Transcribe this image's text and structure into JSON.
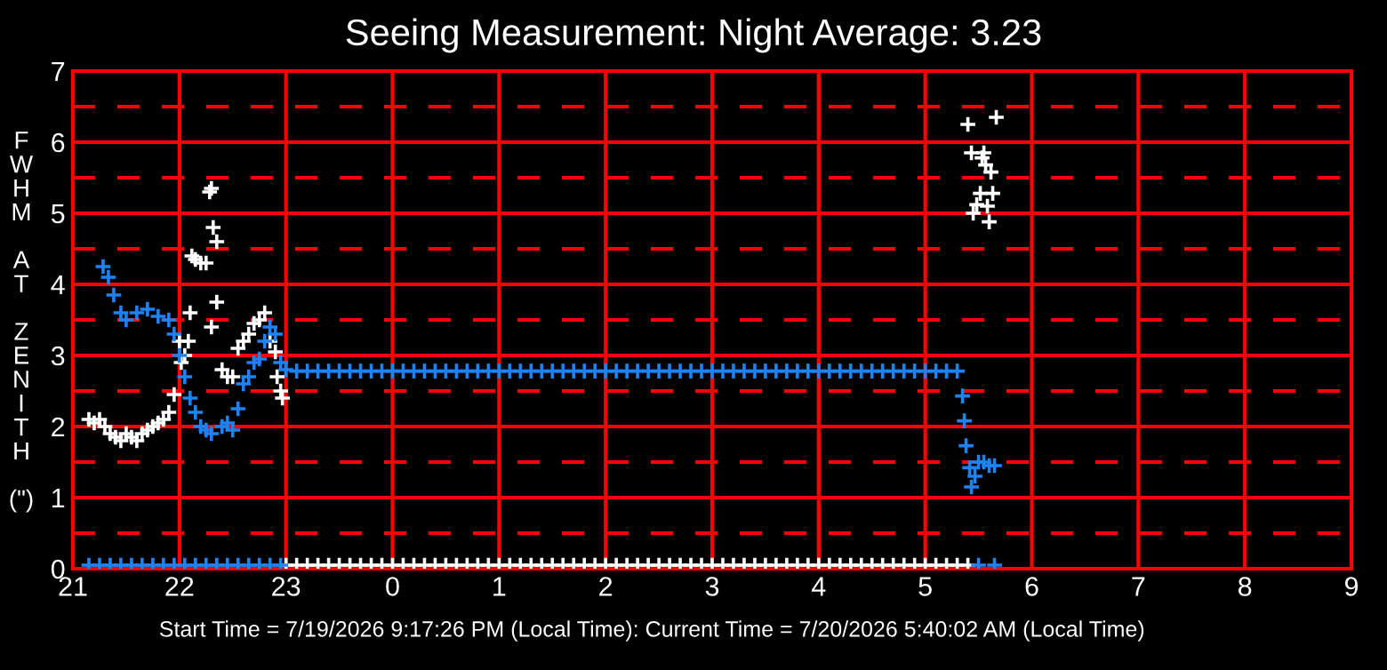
{
  "chart_data": {
    "type": "scatter",
    "title": "Seeing Measurement: Night Average: 3.23",
    "ylabel": "FWHM AT ZENITH (\")",
    "annotations": [
      "Start Time = 7/19/2026 9:17:26 PM (Local Time): Current Time = 7/20/2026 5:40:02 AM (Local Time)"
    ],
    "xlim": [
      "2026-07-19T21:00",
      "2026-07-20T09:00"
    ],
    "xticks": [
      {
        "value": "2026-07-19T21:00",
        "label": "21"
      },
      {
        "value": "2026-07-19T22:00",
        "label": "22"
      },
      {
        "value": "2026-07-19T23:00",
        "label": "23"
      },
      {
        "value": "2026-07-20T00:00",
        "label": "0"
      },
      {
        "value": "2026-07-20T01:00",
        "label": "1"
      },
      {
        "value": "2026-07-20T02:00",
        "label": "2"
      },
      {
        "value": "2026-07-20T03:00",
        "label": "3"
      },
      {
        "value": "2026-07-20T04:00",
        "label": "4"
      },
      {
        "value": "2026-07-20T05:00",
        "label": "5"
      },
      {
        "value": "2026-07-20T06:00",
        "label": "6"
      },
      {
        "value": "2026-07-20T07:00",
        "label": "7"
      },
      {
        "value": "2026-07-20T08:00",
        "label": "8"
      },
      {
        "value": "2026-07-20T09:00",
        "label": "9"
      }
    ],
    "ylim": [
      0,
      7
    ],
    "yticks": [
      0,
      1,
      2,
      3,
      4,
      5,
      6,
      7
    ],
    "grid": true,
    "marker": "cross",
    "ref_lines": [
      {
        "axis": "y",
        "value": 0.5,
        "color": "#ff0000",
        "line_style": "dashed"
      },
      {
        "axis": "y",
        "value": 1.5,
        "color": "#ff0000",
        "line_style": "dashed"
      },
      {
        "axis": "y",
        "value": 2.5,
        "color": "#ff0000",
        "line_style": "dashed"
      },
      {
        "axis": "y",
        "value": 3.5,
        "color": "#ff0000",
        "line_style": "dashed"
      },
      {
        "axis": "y",
        "value": 4.5,
        "color": "#ff0000",
        "line_style": "dashed"
      },
      {
        "axis": "y",
        "value": 5.5,
        "color": "#ff0000",
        "line_style": "dashed"
      },
      {
        "axis": "y",
        "value": 6.5,
        "color": "#ff0000",
        "line_style": "dashed"
      }
    ],
    "series": [
      {
        "color": "#ffffff",
        "x": [
          "2026-07-19T21:09",
          "2026-07-19T21:12",
          "2026-07-19T21:15",
          "2026-07-19T21:18",
          "2026-07-19T21:21",
          "2026-07-19T21:24",
          "2026-07-19T21:27",
          "2026-07-19T21:30",
          "2026-07-19T21:33",
          "2026-07-19T21:36",
          "2026-07-19T21:39",
          "2026-07-19T21:42",
          "2026-07-19T21:45",
          "2026-07-19T21:48",
          "2026-07-19T21:51",
          "2026-07-19T21:54",
          "2026-07-19T21:57",
          "2026-07-19T22:00",
          "2026-07-19T22:01",
          "2026-07-19T22:03",
          "2026-07-19T22:05",
          "2026-07-19T22:06",
          "2026-07-19T22:07",
          "2026-07-19T22:09",
          "2026-07-19T22:12",
          "2026-07-19T22:15",
          "2026-07-19T22:17",
          "2026-07-19T22:18",
          "2026-07-19T22:19",
          "2026-07-19T22:21",
          "2026-07-19T22:18",
          "2026-07-19T22:21",
          "2026-07-19T22:24",
          "2026-07-19T22:27",
          "2026-07-19T22:30",
          "2026-07-19T22:33",
          "2026-07-19T22:36",
          "2026-07-19T22:39",
          "2026-07-19T22:42",
          "2026-07-19T22:45",
          "2026-07-19T22:48",
          "2026-07-19T22:51",
          "2026-07-19T22:54",
          "2026-07-19T22:55",
          "2026-07-19T22:57",
          "2026-07-19T22:58",
          "2026-07-20T05:24",
          "2026-07-20T05:26",
          "2026-07-20T05:27",
          "2026-07-20T05:29",
          "2026-07-20T05:31",
          "2026-07-20T05:32",
          "2026-07-20T05:33",
          "2026-07-20T05:34",
          "2026-07-20T05:35",
          "2026-07-20T05:36",
          "2026-07-20T05:37",
          "2026-07-20T05:38",
          "2026-07-20T05:40"
        ],
        "values": [
          2.1,
          2.05,
          2.1,
          2.0,
          1.9,
          1.85,
          1.8,
          1.9,
          1.85,
          1.8,
          1.9,
          1.95,
          2.0,
          2.05,
          2.1,
          2.2,
          2.45,
          3.2,
          2.9,
          3.0,
          3.2,
          3.6,
          4.4,
          4.35,
          4.3,
          4.3,
          5.3,
          5.35,
          4.8,
          4.6,
          3.4,
          3.75,
          2.8,
          2.7,
          2.7,
          3.1,
          3.2,
          3.3,
          3.45,
          3.5,
          3.6,
          3.2,
          3.05,
          2.7,
          2.5,
          2.4,
          6.25,
          5.85,
          5.0,
          5.12,
          5.28,
          5.78,
          5.85,
          5.68,
          5.1,
          4.88,
          5.58,
          5.28,
          6.35
        ]
      },
      {
        "color": "#ffffff",
        "x": [
          "2026-07-19T23:00",
          "2026-07-19T23:06",
          "2026-07-19T23:12",
          "2026-07-19T23:18",
          "2026-07-19T23:24",
          "2026-07-19T23:30",
          "2026-07-19T23:36",
          "2026-07-19T23:42",
          "2026-07-19T23:48",
          "2026-07-19T23:54",
          "2026-07-20T00:00",
          "2026-07-20T00:06",
          "2026-07-20T00:12",
          "2026-07-20T00:18",
          "2026-07-20T00:24",
          "2026-07-20T00:30",
          "2026-07-20T00:36",
          "2026-07-20T00:42",
          "2026-07-20T00:48",
          "2026-07-20T00:54",
          "2026-07-20T01:00",
          "2026-07-20T01:06",
          "2026-07-20T01:12",
          "2026-07-20T01:18",
          "2026-07-20T01:24",
          "2026-07-20T01:30",
          "2026-07-20T01:36",
          "2026-07-20T01:42",
          "2026-07-20T01:48",
          "2026-07-20T01:54",
          "2026-07-20T02:00",
          "2026-07-20T02:06",
          "2026-07-20T02:12",
          "2026-07-20T02:18",
          "2026-07-20T02:24",
          "2026-07-20T02:30",
          "2026-07-20T02:36",
          "2026-07-20T02:42",
          "2026-07-20T02:48",
          "2026-07-20T02:54",
          "2026-07-20T03:00",
          "2026-07-20T03:06",
          "2026-07-20T03:12",
          "2026-07-20T03:18",
          "2026-07-20T03:24",
          "2026-07-20T03:30",
          "2026-07-20T03:36",
          "2026-07-20T03:42",
          "2026-07-20T03:48",
          "2026-07-20T03:54",
          "2026-07-20T04:00",
          "2026-07-20T04:06",
          "2026-07-20T04:12",
          "2026-07-20T04:18",
          "2026-07-20T04:24",
          "2026-07-20T04:30",
          "2026-07-20T04:36",
          "2026-07-20T04:42",
          "2026-07-20T04:48",
          "2026-07-20T04:54",
          "2026-07-20T05:00",
          "2026-07-20T05:06",
          "2026-07-20T05:12",
          "2026-07-20T05:18",
          "2026-07-20T05:24"
        ],
        "values": [
          0.05,
          0.05,
          0.05,
          0.05,
          0.05,
          0.05,
          0.05,
          0.05,
          0.05,
          0.05,
          0.05,
          0.05,
          0.05,
          0.05,
          0.05,
          0.05,
          0.05,
          0.05,
          0.05,
          0.05,
          0.05,
          0.05,
          0.05,
          0.05,
          0.05,
          0.05,
          0.05,
          0.05,
          0.05,
          0.05,
          0.05,
          0.05,
          0.05,
          0.05,
          0.05,
          0.05,
          0.05,
          0.05,
          0.05,
          0.05,
          0.05,
          0.05,
          0.05,
          0.05,
          0.05,
          0.05,
          0.05,
          0.05,
          0.05,
          0.05,
          0.05,
          0.05,
          0.05,
          0.05,
          0.05,
          0.05,
          0.05,
          0.05,
          0.05,
          0.05,
          0.05,
          0.05,
          0.05,
          0.05,
          0.05
        ]
      },
      {
        "color": "#1e82f0",
        "x": [
          "2026-07-19T21:17",
          "2026-07-19T21:20",
          "2026-07-19T21:23",
          "2026-07-19T21:27",
          "2026-07-19T21:30",
          "2026-07-19T21:36",
          "2026-07-19T21:42",
          "2026-07-19T21:48",
          "2026-07-19T21:54",
          "2026-07-19T21:57",
          "2026-07-19T22:00",
          "2026-07-19T22:03",
          "2026-07-19T22:06",
          "2026-07-19T22:09",
          "2026-07-19T22:12",
          "2026-07-19T22:15",
          "2026-07-19T22:18",
          "2026-07-19T22:24",
          "2026-07-19T22:27",
          "2026-07-19T22:30",
          "2026-07-19T22:33",
          "2026-07-19T22:36",
          "2026-07-19T22:39",
          "2026-07-19T22:42",
          "2026-07-19T22:45",
          "2026-07-19T22:48",
          "2026-07-19T22:51",
          "2026-07-19T22:54",
          "2026-07-19T22:57",
          "2026-07-19T23:00",
          "2026-07-19T23:06",
          "2026-07-19T23:12",
          "2026-07-19T23:18",
          "2026-07-19T23:24",
          "2026-07-19T23:30",
          "2026-07-19T23:36",
          "2026-07-19T23:42",
          "2026-07-19T23:48",
          "2026-07-19T23:54",
          "2026-07-20T00:00",
          "2026-07-20T00:06",
          "2026-07-20T00:12",
          "2026-07-20T00:18",
          "2026-07-20T00:24",
          "2026-07-20T00:30",
          "2026-07-20T00:36",
          "2026-07-20T00:42",
          "2026-07-20T00:48",
          "2026-07-20T00:54",
          "2026-07-20T01:00",
          "2026-07-20T01:06",
          "2026-07-20T01:12",
          "2026-07-20T01:18",
          "2026-07-20T01:24",
          "2026-07-20T01:30",
          "2026-07-20T01:36",
          "2026-07-20T01:42",
          "2026-07-20T01:48",
          "2026-07-20T01:54",
          "2026-07-20T02:00",
          "2026-07-20T02:06",
          "2026-07-20T02:12",
          "2026-07-20T02:18",
          "2026-07-20T02:24",
          "2026-07-20T02:30",
          "2026-07-20T02:36",
          "2026-07-20T02:42",
          "2026-07-20T02:48",
          "2026-07-20T02:54",
          "2026-07-20T03:00",
          "2026-07-20T03:06",
          "2026-07-20T03:12",
          "2026-07-20T03:18",
          "2026-07-20T03:24",
          "2026-07-20T03:30",
          "2026-07-20T03:36",
          "2026-07-20T03:42",
          "2026-07-20T03:48",
          "2026-07-20T03:54",
          "2026-07-20T04:00",
          "2026-07-20T04:06",
          "2026-07-20T04:12",
          "2026-07-20T04:18",
          "2026-07-20T04:24",
          "2026-07-20T04:30",
          "2026-07-20T04:36",
          "2026-07-20T04:42",
          "2026-07-20T04:48",
          "2026-07-20T04:54",
          "2026-07-20T05:00",
          "2026-07-20T05:06",
          "2026-07-20T05:12",
          "2026-07-20T05:18",
          "2026-07-20T05:21",
          "2026-07-20T05:22",
          "2026-07-20T05:23",
          "2026-07-20T05:25",
          "2026-07-20T05:26",
          "2026-07-20T05:28",
          "2026-07-20T05:30",
          "2026-07-20T05:33",
          "2026-07-20T05:36",
          "2026-07-20T05:39"
        ],
        "values": [
          4.25,
          4.1,
          3.85,
          3.6,
          3.5,
          3.6,
          3.65,
          3.55,
          3.5,
          3.3,
          3.0,
          2.7,
          2.4,
          2.2,
          2.0,
          1.95,
          1.9,
          2.0,
          2.05,
          1.95,
          2.25,
          2.6,
          2.7,
          2.9,
          2.95,
          3.2,
          3.4,
          3.3,
          2.9,
          2.8,
          2.78,
          2.78,
          2.78,
          2.78,
          2.78,
          2.78,
          2.78,
          2.78,
          2.78,
          2.78,
          2.78,
          2.78,
          2.78,
          2.78,
          2.78,
          2.78,
          2.78,
          2.78,
          2.78,
          2.78,
          2.78,
          2.78,
          2.78,
          2.78,
          2.78,
          2.78,
          2.78,
          2.78,
          2.78,
          2.78,
          2.78,
          2.78,
          2.78,
          2.78,
          2.78,
          2.78,
          2.78,
          2.78,
          2.78,
          2.78,
          2.78,
          2.78,
          2.78,
          2.78,
          2.78,
          2.78,
          2.78,
          2.78,
          2.78,
          2.78,
          2.78,
          2.78,
          2.78,
          2.78,
          2.78,
          2.78,
          2.78,
          2.78,
          2.78,
          2.78,
          2.78,
          2.78,
          2.78,
          2.43,
          2.08,
          1.73,
          1.42,
          1.15,
          1.3,
          1.5,
          1.5,
          1.45,
          1.45
        ]
      },
      {
        "color": "#1e82f0",
        "x": [
          "2026-07-19T21:09",
          "2026-07-19T21:15",
          "2026-07-19T21:21",
          "2026-07-19T21:27",
          "2026-07-19T21:33",
          "2026-07-19T21:39",
          "2026-07-19T21:45",
          "2026-07-19T21:51",
          "2026-07-19T21:57",
          "2026-07-19T22:03",
          "2026-07-19T22:09",
          "2026-07-19T22:15",
          "2026-07-19T22:21",
          "2026-07-19T22:27",
          "2026-07-19T22:33",
          "2026-07-19T22:39",
          "2026-07-19T22:45",
          "2026-07-19T22:51",
          "2026-07-19T22:57",
          "2026-07-20T05:30",
          "2026-07-20T05:39"
        ],
        "values": [
          0.05,
          0.05,
          0.05,
          0.05,
          0.05,
          0.05,
          0.05,
          0.05,
          0.05,
          0.05,
          0.05,
          0.05,
          0.05,
          0.05,
          0.05,
          0.05,
          0.05,
          0.05,
          0.05,
          0.05,
          0.05
        ]
      }
    ]
  }
}
